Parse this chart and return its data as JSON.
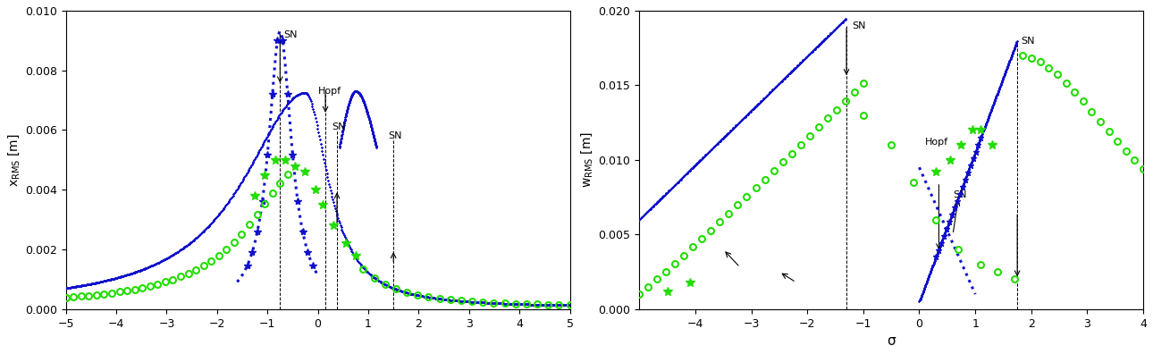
{
  "blue": "#1010CC",
  "green": "#22DD00",
  "left_xlim": [
    -5,
    5
  ],
  "left_ylim": [
    0,
    0.01
  ],
  "left_ylabel": "x$_{\\mathrm{RMS}}$ [m]",
  "left_yticks": [
    0,
    0.002,
    0.004,
    0.006,
    0.008,
    0.01
  ],
  "left_xticks": [
    -5,
    -4,
    -3,
    -2,
    -1,
    0,
    1,
    2,
    3,
    4,
    5
  ],
  "right_xlim": [
    -5,
    4
  ],
  "right_ylim": [
    0,
    0.02
  ],
  "right_ylabel": "w$_{\\mathrm{RMS}}$ [m]",
  "right_xlabel": "σ",
  "right_yticks": [
    0,
    0.005,
    0.01,
    0.015,
    0.02
  ],
  "right_xticks": [
    -4,
    -3,
    -2,
    -1,
    0,
    1,
    2,
    3,
    4
  ]
}
